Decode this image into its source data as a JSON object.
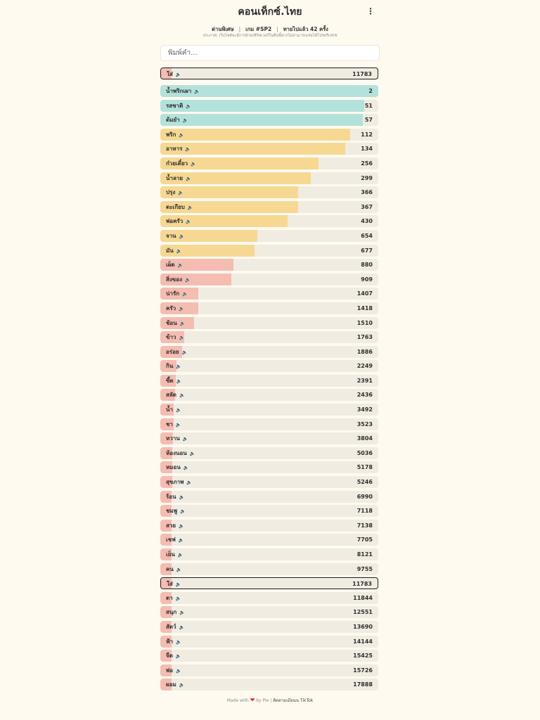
{
  "header": {
    "title": "คอนเท็กซ์.ไทย",
    "menu_icon": "⋮",
    "mode": "ด่านพิเศษ",
    "game": "เกม #SP2",
    "guesses": "ทายไปแล้ว 42 ครั้ง",
    "separator": "|",
    "notice": "ประกาศ: เว็บไซต์จะมีการย้ายเซิร์ฟเวอร์ในคืนนี้หากไม่สามารถเล่นได้โปรดรีเฟรช"
  },
  "search": {
    "placeholder": "พิมพ์คำ..."
  },
  "speaker_icon": "🔈",
  "colors": {
    "green": "#b3e2da",
    "yellow": "#f6d892",
    "red": "#f5bcb1",
    "track": "#f1ece2"
  },
  "current_guess": {
    "word": "ใส่",
    "rank": "11783",
    "fill": 0.05,
    "color": "red"
  },
  "guesses": [
    {
      "word": "น้ำพริกเผา",
      "rank": "2",
      "fill": 1.0,
      "color": "green"
    },
    {
      "word": "รสชาติ",
      "rank": "51",
      "fill": 0.935,
      "color": "green"
    },
    {
      "word": "ต้มยำ",
      "rank": "57",
      "fill": 0.93,
      "color": "green"
    },
    {
      "word": "พริก",
      "rank": "112",
      "fill": 0.87,
      "color": "yellow"
    },
    {
      "word": "อาหาร",
      "rank": "134",
      "fill": 0.848,
      "color": "yellow"
    },
    {
      "word": "ก๋วยเตี๋ยว",
      "rank": "256",
      "fill": 0.727,
      "color": "yellow"
    },
    {
      "word": "น้ำลาย",
      "rank": "299",
      "fill": 0.69,
      "color": "yellow"
    },
    {
      "word": "ปรุง",
      "rank": "366",
      "fill": 0.632,
      "color": "yellow"
    },
    {
      "word": "ตะเกียบ",
      "rank": "367",
      "fill": 0.632,
      "color": "yellow"
    },
    {
      "word": "พ่อครัว",
      "rank": "430",
      "fill": 0.584,
      "color": "yellow"
    },
    {
      "word": "จาน",
      "rank": "654",
      "fill": 0.445,
      "color": "yellow"
    },
    {
      "word": "มัน",
      "rank": "677",
      "fill": 0.432,
      "color": "yellow"
    },
    {
      "word": "เผ็ด",
      "rank": "880",
      "fill": 0.335,
      "color": "red"
    },
    {
      "word": "สิ่งของ",
      "rank": "909",
      "fill": 0.325,
      "color": "red"
    },
    {
      "word": "น่ารัก",
      "rank": "1407",
      "fill": 0.173,
      "color": "red"
    },
    {
      "word": "ครัว",
      "rank": "1418",
      "fill": 0.173,
      "color": "red"
    },
    {
      "word": "ช้อน",
      "rank": "1510",
      "fill": 0.155,
      "color": "red"
    },
    {
      "word": "ข้าว",
      "rank": "1763",
      "fill": 0.11,
      "color": "red"
    },
    {
      "word": "อร่อย",
      "rank": "1886",
      "fill": 0.1,
      "color": "red"
    },
    {
      "word": "กิน",
      "rank": "2249",
      "fill": 0.075,
      "color": "red"
    },
    {
      "word": "ซี้ด",
      "rank": "2391",
      "fill": 0.07,
      "color": "red"
    },
    {
      "word": "สลัด",
      "rank": "2436",
      "fill": 0.068,
      "color": "red"
    },
    {
      "word": "น้ำ",
      "rank": "3492",
      "fill": 0.06,
      "color": "red"
    },
    {
      "word": "ชา",
      "rank": "3523",
      "fill": 0.06,
      "color": "red"
    },
    {
      "word": "หวาน",
      "rank": "3804",
      "fill": 0.058,
      "color": "red"
    },
    {
      "word": "ห้องนอน",
      "rank": "5036",
      "fill": 0.055,
      "color": "red"
    },
    {
      "word": "หมอน",
      "rank": "5178",
      "fill": 0.055,
      "color": "red"
    },
    {
      "word": "สุขภาพ",
      "rank": "5246",
      "fill": 0.055,
      "color": "red"
    },
    {
      "word": "ร้อน",
      "rank": "6990",
      "fill": 0.052,
      "color": "red"
    },
    {
      "word": "ชมพู",
      "rank": "7118",
      "fill": 0.052,
      "color": "red"
    },
    {
      "word": "สวย",
      "rank": "7138",
      "fill": 0.052,
      "color": "red"
    },
    {
      "word": "เชฟ",
      "rank": "7705",
      "fill": 0.05,
      "color": "red"
    },
    {
      "word": "เย็น",
      "rank": "8121",
      "fill": 0.05,
      "color": "red"
    },
    {
      "word": "คน",
      "rank": "9755",
      "fill": 0.05,
      "color": "red"
    },
    {
      "word": "ใส่",
      "rank": "11783",
      "fill": 0.05,
      "color": "red",
      "highlight": true
    },
    {
      "word": "ตา",
      "rank": "11844",
      "fill": 0.05,
      "color": "red"
    },
    {
      "word": "สนุก",
      "rank": "12551",
      "fill": 0.05,
      "color": "red"
    },
    {
      "word": "สัตว์",
      "rank": "13690",
      "fill": 0.05,
      "color": "red"
    },
    {
      "word": "ฟ้า",
      "rank": "14144",
      "fill": 0.05,
      "color": "red"
    },
    {
      "word": "จืด",
      "rank": "15425",
      "fill": 0.05,
      "color": "red"
    },
    {
      "word": "พ่อ",
      "rank": "15726",
      "fill": 0.05,
      "color": "red"
    },
    {
      "word": "ผอม",
      "rank": "17888",
      "fill": 0.05,
      "color": "red"
    }
  ],
  "footer": {
    "made_with": "Made with",
    "heart": "❤",
    "by": "by Pie |",
    "link": "ติดตามเมียนน TikTok"
  }
}
